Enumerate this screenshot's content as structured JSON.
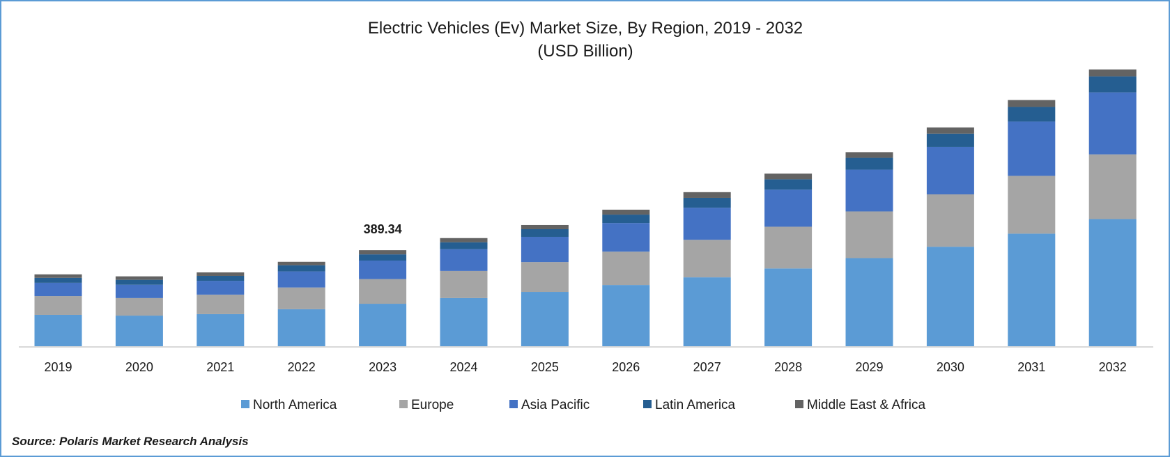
{
  "chart_data": {
    "type": "stacked-bar",
    "title": "Electric Vehicles (Ev) Market Size, By Region, 2019 - 2032",
    "subtitle": "(USD Billion)",
    "xlabel": "",
    "ylabel": "",
    "categories": [
      "2019",
      "2020",
      "2021",
      "2022",
      "2023",
      "2024",
      "2025",
      "2026",
      "2027",
      "2028",
      "2029",
      "2030",
      "2031",
      "2032"
    ],
    "series": [
      {
        "name": "North America",
        "color": "#5B9BD5",
        "values": [
          127,
          124,
          130,
          150,
          172,
          195,
          220,
          248,
          279,
          315,
          357,
          403,
          456,
          515
        ]
      },
      {
        "name": "Europe",
        "color": "#A5A5A5",
        "values": [
          76,
          71,
          79,
          88,
          100,
          110,
          121,
          135,
          152,
          169,
          189,
          212,
          234,
          262
        ]
      },
      {
        "name": "Asia Pacific",
        "color": "#4472C4",
        "values": [
          54,
          54,
          56,
          65,
          75,
          88,
          102,
          116,
          130,
          150,
          169,
          192,
          220,
          251
        ]
      },
      {
        "name": "Latin America",
        "color": "#255E91",
        "values": [
          20,
          20,
          20,
          25,
          25,
          28,
          31,
          34,
          40,
          42,
          48,
          54,
          59,
          65
        ]
      },
      {
        "name": "Middle East & Africa",
        "color": "#636363",
        "values": [
          14,
          14,
          14,
          14,
          17,
          17,
          17,
          20,
          23,
          23,
          23,
          25,
          28,
          28
        ]
      }
    ],
    "annotations": [
      {
        "category": "2023",
        "text": "389.34",
        "value": 389.34
      }
    ],
    "ylim": [
      0,
      1100
    ],
    "grid": false,
    "legend": "bottom"
  },
  "source": "Source: Polaris Market Research Analysis",
  "border_color": "#5B9BD5"
}
